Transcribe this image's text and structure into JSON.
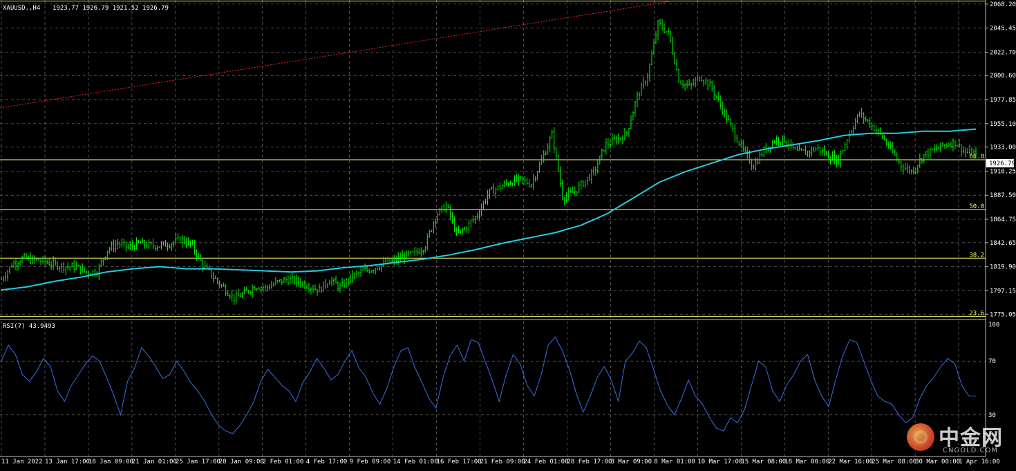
{
  "header": {
    "symbol": "XAUUSD.,H4",
    "ohlc": "1923.77 1926.79 1921.52 1926.79"
  },
  "rsi_header": {
    "label": "RSI(7) 43.9493"
  },
  "watermark": {
    "cn": "中金网",
    "en": "CNGOLD.COM"
  },
  "colors": {
    "background": "#000000",
    "grid": "#707070",
    "candle": "#00ff00",
    "ma": "#22ccdd",
    "rsi": "#3a6fe0",
    "fib": "#ffff66",
    "trend": "#ff2020",
    "text": "#ffffff"
  },
  "chart_data": [
    {
      "type": "candlestick",
      "title": "XAUUSD.,H4",
      "current_price": 1926.79,
      "ylim": [
        1770,
        2072
      ],
      "y_ticks": [
        "2068.20",
        "2045.45",
        "2022.70",
        "2000.60",
        "1977.85",
        "1955.10",
        "1933.00",
        "1910.25",
        "1887.50",
        "1864.75",
        "1842.65",
        "1819.90",
        "1797.15",
        "1775.05"
      ],
      "x_ticks": [
        "11 Jan 2022",
        "13 Jan 17:00",
        "18 Jan 09:00",
        "21 Jan 01:00",
        "25 Jan 17:00",
        "28 Jan 09:00",
        "2 Feb 01:00",
        "4 Feb 17:00",
        "9 Feb 09:00",
        "14 Feb 01:00",
        "16 Feb 17:00",
        "21 Feb 09:00",
        "24 Feb 01:00",
        "28 Feb 17:00",
        "3 Mar 09:00",
        "8 Mar 01:00",
        "10 Mar 17:00",
        "15 Mar 08:00",
        "18 Mar 00:00",
        "22 Mar 16:00",
        "25 Mar 08:00",
        "30 Mar 00:00",
        "1 Apr 16:00"
      ],
      "price_path": [
        1808,
        1822,
        1828,
        1826,
        1825,
        1822,
        1820,
        1820,
        1815,
        1815,
        1836,
        1842,
        1838,
        1842,
        1840,
        1840,
        1842,
        1846,
        1840,
        1822,
        1810,
        1800,
        1790,
        1795,
        1802,
        1800,
        1805,
        1808,
        1806,
        1802,
        1798,
        1808,
        1800,
        1810,
        1815,
        1818,
        1822,
        1825,
        1830,
        1832,
        1840,
        1868,
        1878,
        1850,
        1858,
        1870,
        1890,
        1895,
        1900,
        1902,
        1898,
        1920,
        1945,
        1885,
        1890,
        1900,
        1910,
        1935,
        1940,
        1945,
        1980,
        2000,
        2050,
        2040,
        1995,
        1990,
        2000,
        1990,
        1970,
        1950,
        1930,
        1915,
        1930,
        1940,
        1940,
        1928,
        1928,
        1932,
        1925,
        1920,
        1945,
        1965,
        1955,
        1945,
        1930,
        1915,
        1910,
        1925,
        1930,
        1935,
        1938,
        1928,
        1926.79
      ],
      "ma": {
        "name": "",
        "path": [
          1798,
          1801,
          1806,
          1810,
          1815,
          1818,
          1820,
          1818,
          1818,
          1817,
          1816,
          1815,
          1816,
          1819,
          1821,
          1824,
          1827,
          1831,
          1836,
          1842,
          1847,
          1852,
          1859,
          1870,
          1885,
          1900,
          1910,
          1918,
          1926,
          1931,
          1935,
          1939,
          1944,
          1946,
          1946,
          1948,
          1948,
          1950
        ]
      },
      "fib_levels": [
        {
          "label": "100.0",
          "price": 2071
        },
        {
          "label": "61.8",
          "price": 1921
        },
        {
          "label": "50.0",
          "price": 1874
        },
        {
          "label": "38.2",
          "price": 1828
        },
        {
          "label": "23.6",
          "price": 1773
        }
      ],
      "trendline": {
        "from": 1970,
        "to": 2071
      }
    },
    {
      "type": "line",
      "title": "RSI(7) 43.9493",
      "ylim": [
        0,
        100
      ],
      "y_ticks": [
        "100",
        "70",
        "30"
      ],
      "levels": [
        70,
        30
      ],
      "series": [
        {
          "values": [
            70,
            82,
            75,
            60,
            55,
            62,
            72,
            66,
            48,
            40,
            52,
            60,
            68,
            74,
            70,
            58,
            45,
            30,
            55,
            65,
            80,
            74,
            66,
            57,
            60,
            70,
            63,
            54,
            48,
            40,
            30,
            22,
            18,
            16,
            22,
            30,
            40,
            55,
            64,
            58,
            52,
            48,
            40,
            54,
            62,
            72,
            65,
            56,
            60,
            70,
            78,
            65,
            58,
            46,
            38,
            50,
            66,
            78,
            80,
            65,
            54,
            42,
            35,
            58,
            74,
            82,
            70,
            86,
            84,
            70,
            56,
            40,
            60,
            75,
            68,
            52,
            44,
            60,
            82,
            88,
            78,
            64,
            46,
            32,
            44,
            58,
            66,
            56,
            40,
            70,
            76,
            85,
            80,
            64,
            48,
            37,
            30,
            42,
            56,
            44,
            38,
            28,
            20,
            18,
            28,
            24,
            34,
            52,
            70,
            66,
            48,
            40,
            52,
            60,
            70,
            75,
            56,
            44,
            36,
            56,
            74,
            86,
            84,
            70,
            56,
            44,
            40,
            38,
            30,
            24,
            28,
            42,
            52,
            58,
            66,
            72,
            68,
            52,
            44,
            43.9493
          ]
        }
      ]
    }
  ]
}
